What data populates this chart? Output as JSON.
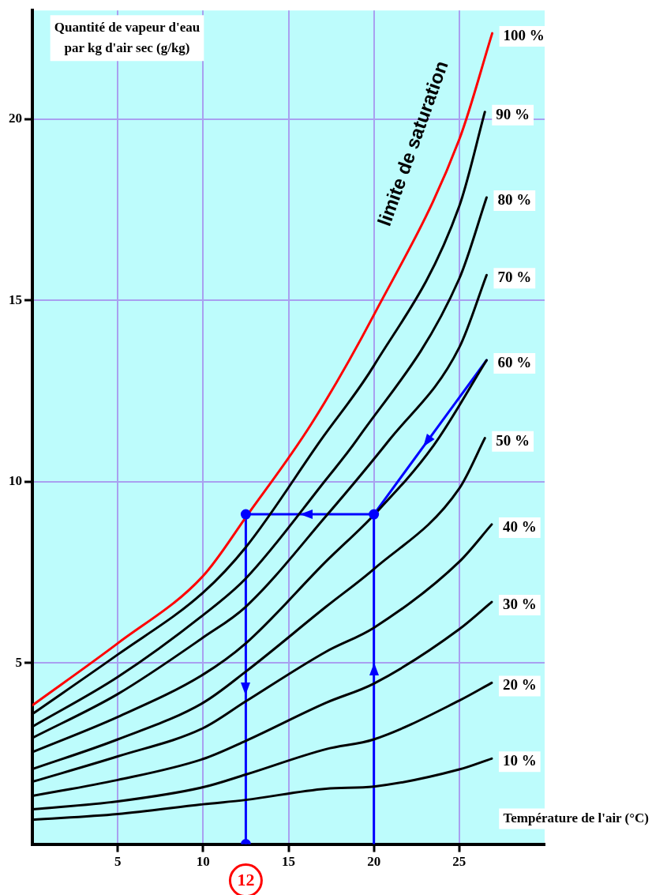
{
  "chart_data": {
    "type": "line",
    "xlabel": "Température de l'air (°C)",
    "ylabel": "Quantité de vapeur d'eau par kg d'air sec (g/kg)",
    "xlim": [
      0,
      30
    ],
    "ylim": [
      0,
      23
    ],
    "xticks": [
      5,
      10,
      15,
      20,
      25
    ],
    "yticks": [
      5,
      10,
      15,
      20
    ],
    "grid": true,
    "legend": false,
    "marker": "none",
    "series": [
      {
        "name": "100 %",
        "color": "#ff0000",
        "x": [
          0,
          5,
          10,
          12.55,
          16.35,
          20,
          25,
          26.93
        ],
        "values": [
          3.83,
          5.54,
          7.4,
          9.05,
          11.6,
          14.6,
          19.44,
          22.37
        ]
      },
      {
        "name": "90 %",
        "color": "#000000",
        "x": [
          0,
          5,
          10,
          12.5,
          16.9,
          20,
          25,
          26.5
        ],
        "values": [
          3.59,
          5.23,
          6.94,
          8.19,
          11.15,
          13.2,
          17.6,
          20.2
        ]
      },
      {
        "name": "80 %",
        "color": "#000000",
        "x": [
          0,
          5,
          10,
          12.5,
          17.2,
          19,
          25,
          26.6
        ],
        "values": [
          3.24,
          4.61,
          6.32,
          7.33,
          10.06,
          11.15,
          15.6,
          17.84
        ]
      },
      {
        "name": "70 %",
        "color": "#000000",
        "x": [
          0,
          5,
          10,
          12.5,
          17.2,
          20.9,
          25,
          26.6
        ],
        "values": [
          2.93,
          4.14,
          5.7,
          6.55,
          9.05,
          11.15,
          13.7,
          15.7
        ]
      },
      {
        "name": "60 %",
        "color": "#000000",
        "x": [
          0,
          5,
          10,
          12.5,
          17.2,
          20,
          23.5,
          26.6
        ],
        "values": [
          2.54,
          3.51,
          4.68,
          5.54,
          7.8,
          9.08,
          11.0,
          13.35
        ]
      },
      {
        "name": "50 %",
        "color": "#000000",
        "x": [
          0,
          5,
          10,
          12.5,
          17.2,
          20,
          25,
          26.5
        ],
        "values": [
          2.07,
          2.89,
          3.9,
          4.76,
          6.55,
          7.59,
          9.81,
          11.2
        ]
      },
      {
        "name": "40 %",
        "color": "#000000",
        "x": [
          0,
          5,
          10,
          12.5,
          17.2,
          20,
          25,
          26.9
        ],
        "values": [
          1.72,
          2.42,
          3.2,
          3.94,
          5.31,
          5.97,
          7.79,
          8.82
        ]
      },
      {
        "name": "30 %",
        "color": "#000000",
        "x": [
          0,
          5,
          10,
          12.5,
          17.2,
          20,
          25,
          26.9
        ],
        "values": [
          1.33,
          1.77,
          2.35,
          2.85,
          3.9,
          4.43,
          5.93,
          6.68
        ]
      },
      {
        "name": "20 %",
        "color": "#000000",
        "x": [
          0,
          5,
          10,
          12.5,
          17.2,
          20,
          25,
          26.9
        ],
        "values": [
          0.96,
          1.18,
          1.57,
          1.92,
          2.62,
          2.89,
          3.96,
          4.45
        ]
      },
      {
        "name": "10 %",
        "color": "#000000",
        "x": [
          0,
          5,
          10,
          12.5,
          17.2,
          20,
          25,
          26.9
        ],
        "values": [
          0.67,
          0.83,
          1.1,
          1.22,
          1.53,
          1.59,
          2.06,
          2.36
        ]
      },
      {
        "color": "#0000ff",
        "x": [
          26.6,
          20,
          12.5,
          12.5
        ],
        "values": [
          13.35,
          9.1,
          9.1,
          0
        ]
      },
      {
        "color": "#0000ff",
        "x": [
          20,
          20
        ],
        "values": [
          0,
          9.1
        ]
      },
      {
        "type": "scatter",
        "marker": "circle",
        "color": "#0000ff",
        "x": [
          12.5,
          20,
          12.5
        ],
        "values": [
          9.1,
          9.1,
          0
        ]
      }
    ],
    "annotations": [
      "limite de saturation",
      {
        "text": "12",
        "x": 12.5,
        "y": 0
      }
    ]
  }
}
